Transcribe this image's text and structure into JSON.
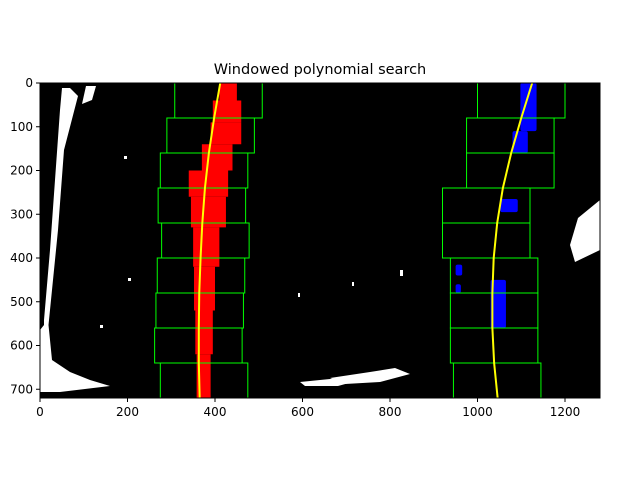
{
  "chart_data": {
    "type": "image",
    "title": "Windowed polynomial search",
    "xlabel": "",
    "ylabel": "",
    "xlim": [
      0,
      1280
    ],
    "ylim": [
      720,
      0
    ],
    "x_ticks": [
      0,
      200,
      400,
      600,
      800,
      1000,
      1200
    ],
    "y_ticks": [
      0,
      100,
      200,
      300,
      400,
      500,
      600,
      700
    ],
    "background_color": "#000000",
    "left_lane_pixel_color": "#ff0000",
    "right_lane_pixel_color": "#0000ff",
    "other_pixel_color": "#ffffff",
    "fit_line_color": "#ffff00",
    "window_color": "#00ff00",
    "left_windows": [
      {
        "x_min": 308,
        "x_max": 508,
        "y_min": 0,
        "y_max": 80
      },
      {
        "x_min": 290,
        "x_max": 490,
        "y_min": 80,
        "y_max": 160
      },
      {
        "x_min": 275,
        "x_max": 475,
        "y_min": 160,
        "y_max": 240
      },
      {
        "x_min": 270,
        "x_max": 470,
        "y_min": 240,
        "y_max": 320
      },
      {
        "x_min": 278,
        "x_max": 478,
        "y_min": 320,
        "y_max": 400
      },
      {
        "x_min": 268,
        "x_max": 468,
        "y_min": 400,
        "y_max": 480
      },
      {
        "x_min": 265,
        "x_max": 465,
        "y_min": 480,
        "y_max": 560
      },
      {
        "x_min": 262,
        "x_max": 462,
        "y_min": 560,
        "y_max": 640
      },
      {
        "x_min": 275,
        "x_max": 475,
        "y_min": 640,
        "y_max": 720
      }
    ],
    "right_windows": [
      {
        "x_min": 1000,
        "x_max": 1200,
        "y_min": 0,
        "y_max": 80
      },
      {
        "x_min": 975,
        "x_max": 1175,
        "y_min": 80,
        "y_max": 160
      },
      {
        "x_min": 975,
        "x_max": 1175,
        "y_min": 160,
        "y_max": 240
      },
      {
        "x_min": 920,
        "x_max": 1120,
        "y_min": 240,
        "y_max": 320
      },
      {
        "x_min": 920,
        "x_max": 1120,
        "y_min": 320,
        "y_max": 400
      },
      {
        "x_min": 938,
        "x_max": 1138,
        "y_min": 400,
        "y_max": 480
      },
      {
        "x_min": 938,
        "x_max": 1138,
        "y_min": 480,
        "y_max": 560
      },
      {
        "x_min": 938,
        "x_max": 1138,
        "y_min": 560,
        "y_max": 640
      },
      {
        "x_min": 945,
        "x_max": 1145,
        "y_min": 640,
        "y_max": 720
      }
    ],
    "left_fit": {
      "y": [
        0,
        80,
        160,
        240,
        320,
        400,
        480,
        560,
        640,
        720
      ],
      "x": [
        412,
        398,
        386,
        377,
        371,
        367,
        364,
        363,
        363,
        365
      ]
    },
    "right_fit": {
      "y": [
        0,
        80,
        160,
        240,
        320,
        400,
        480,
        560,
        640,
        720
      ],
      "x": [
        1125,
        1100,
        1077,
        1058,
        1045,
        1037,
        1034,
        1034,
        1038,
        1046
      ]
    },
    "left_pixel_regions": [
      {
        "x_min": 410,
        "x_max": 450,
        "y_min": 0,
        "y_max": 40
      },
      {
        "x_min": 395,
        "x_max": 460,
        "y_min": 40,
        "y_max": 90
      },
      {
        "x_min": 390,
        "x_max": 460,
        "y_min": 90,
        "y_max": 140
      },
      {
        "x_min": 370,
        "x_max": 440,
        "y_min": 140,
        "y_max": 200
      },
      {
        "x_min": 340,
        "x_max": 430,
        "y_min": 200,
        "y_max": 260
      },
      {
        "x_min": 345,
        "x_max": 425,
        "y_min": 260,
        "y_max": 330
      },
      {
        "x_min": 350,
        "x_max": 410,
        "y_min": 330,
        "y_max": 420
      },
      {
        "x_min": 352,
        "x_max": 400,
        "y_min": 420,
        "y_max": 520
      },
      {
        "x_min": 355,
        "x_max": 395,
        "y_min": 520,
        "y_max": 620
      },
      {
        "x_min": 358,
        "x_max": 390,
        "y_min": 620,
        "y_max": 720
      }
    ],
    "right_pixel_regions": [
      {
        "x_min": 1098,
        "x_max": 1135,
        "y_min": 0,
        "y_max": 110
      },
      {
        "x_min": 1080,
        "x_max": 1115,
        "y_min": 110,
        "y_max": 160
      },
      {
        "x_min": 1052,
        "x_max": 1092,
        "y_min": 265,
        "y_max": 295
      },
      {
        "x_min": 1030,
        "x_max": 1065,
        "y_min": 450,
        "y_max": 560
      },
      {
        "x_min": 950,
        "x_max": 965,
        "y_min": 415,
        "y_max": 440
      },
      {
        "x_min": 950,
        "x_max": 962,
        "y_min": 460,
        "y_max": 480
      }
    ]
  }
}
